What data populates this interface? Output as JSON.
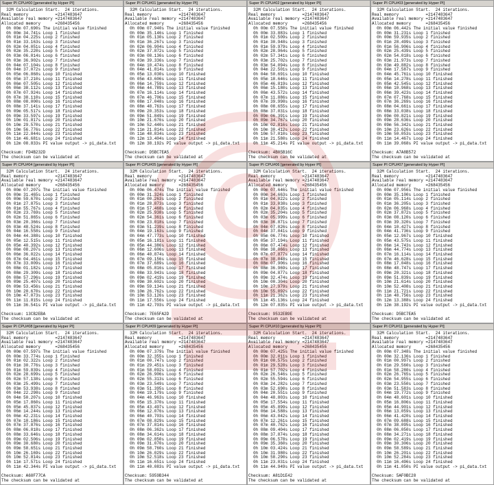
{
  "common": {
    "header": [
      "  32M Calculation Start.  24 iterations.",
      "Real memory           =2147483647",
      "Available real memory =2147483647",
      "Allocated memory      =268435456"
    ],
    "checksum_label": "Checksum: ",
    "validate_text": "The checksum can be validated at",
    "watermark_color": "#d01010"
  },
  "windows": [
    {
      "title": "Super PI CPU#00 [generated by Hyper PI]",
      "checksum": "FD4B232D",
      "lines": [
        "  0h 00m 07.690s The initial value finished",
        "  0h 00m 34.741s Loop 1 finished",
        "  0h 01m 04.225s Loop 2 finished",
        "  0h 01m 33.163s Loop 3 finished",
        "  0h 02m 04.051s Loop 4 finished",
        "  0h 02m 35.220s Loop 5 finished",
        "  0h 03m 06.014s Loop 6 finished",
        "  0h 03m 36.902s Loop 7 finished",
        "  0h 04m 07.104s Loop 8 finished",
        "  0h 04m 37.072s Loop 9 finished",
        "  0h 05m 06.868s Loop 10 finished",
        "  0h 05m 37.210s Loop 11 finished",
        "  0h 06m 07.505s Loop 12 finished",
        "  0h 06m 38.112s Loop 13 finished",
        "  0h 07m 07.924s Loop 14 finished",
        "  0h 07m 38.110s Loop 15 finished",
        "  0h 08m 08.000s Loop 16 finished",
        "  0h 08m 37.141s Loop 17 finished",
        "  0h 09m 05.517s Loop 18 finished",
        "  0h 09m 33.597s Loop 19 finished",
        "  0h 10m 01.817s Loop 20 finished",
        "  0h 10m 29.570s Loop 21 finished",
        "  0h 10m 56.776s Loop 22 finished",
        "  0h 11m 22.844s Loop 23 finished",
        "  0h 11m 46.681s Loop 24 finished",
        "  0h 12m 08.833s PI value output -> pi_data.txt"
      ]
    },
    {
      "title": "Super PI CPU#01 [generated by Hyper PI]",
      "checksum": "D5BC7EA5",
      "lines": [
        "  0h 00m 07.940s The initial value finished",
        "  0h 00m 35.146s Loop 1 finished",
        "  0h 01m 05.130s Loop 2 finished",
        "  0h 01m 36.267s Loop 3 finished",
        "  0h 02m 06.904s Loop 4 finished",
        "  0h 02m 37.872s Loop 5 finished",
        "  0h 03m 08.136s Loop 6 finished",
        "  0h 03m 39.336s Loop 7 finished",
        "  0h 04m 10.474s Loop 8 finished",
        "  0h 04m 41.814s Loop 9 finished",
        "  0h 05m 13.030s Loop 10 finished",
        "  0h 05m 43.606s Loop 11 finished",
        "  0h 06m 14.759s Loop 12 finished",
        "  0h 06m 44.789s Loop 13 finished",
        "  0h 07m 16.114s Loop 14 finished",
        "  0h 07m 46.706s Loop 15 finished",
        "  0h 08m 17.048s Loop 16 finished",
        "  0h 08m 48.763s Loop 17 finished",
        "  0h 09m 20.353s Loop 18 finished",
        "  0h 09m 51.849s Loop 19 finished",
        "  0h 10m 21.676s Loop 20 finished",
        "  0h 10m 52.440s Loop 21 finished",
        "  0h 11m 21.814s Loop 22 finished",
        "  0h 11m 48.834s Loop 23 finished",
        "  0h 12m 13.404s Loop 24 finished",
        "  0h 12m 38.192s PI value output -> pi_data.txt"
      ]
    },
    {
      "title": "Super PI CPU#02 [generated by Hyper PI]",
      "checksum": "4B05B16C",
      "lines": [
        "  0h 00m 07.550s The initial value finished",
        "  0h 00m 33.883s Loop 1 finished",
        "  0h 01m 02.509s Loop 2 finished",
        "  0h 01m 30.948s Loop 3 finished",
        "  0h 01m 59.979s Loop 4 finished",
        "  0h 02m 28.964s Loop 5 finished",
        "  0h 02m 57.341s Loop 6 finished",
        "  0h 03m 25.702s Loop 7 finished",
        "  0h 03m 54.094s Loop 8 finished",
        "  0h 04m 22.501s Loop 9 finished",
        "  0h 04m 50.691s Loop 10 finished",
        "  0h 05m 18.646s Loop 11 finished",
        "  0h 05m 46.819s Loop 12 finished",
        "  0h 06m 15.180s Loop 13 finished",
        "  0h 06m 43.572s Loop 14 finished",
        "  0h 07m 11.886s Loop 15 finished",
        "  0h 07m 39.998s Loop 16 finished",
        "  0h 08m 08.655s Loop 17 finished",
        "  0h 08m 37.031s Loop 18 finished",
        "  0h 09m 06.391s Loop 19 finished",
        "  0h 09m 34.767s Loop 20 finished",
        "  0h 10m 02.816s Loop 21 finished",
        "  0h 10m 30.412s Loop 22 finished",
        "  0h 10m 57.010s Loop 23 finished",
        "  0h 11m 21.580s Loop 24 finished",
        "  0h 11m 45.214s PI value output -> pi_data.txt"
      ]
    },
    {
      "title": "Super PI CPU#03 [generated by Hyper PI]",
      "checksum": "A7A8B572",
      "lines": [
        "  0h 00m 06.442s The initial value finished",
        "  0h 00m 31.231s Loop 1 finished",
        "  0h 00m 59.935s Loop 2 finished",
        "  0h 01m 28.499s Loop 3 finished",
        "  0h 01m 56.906s Loop 4 finished",
        "  0h 02m 25.439s Loop 5 finished",
        "  0h 02m 54.018s Loop 6 finished",
        "  0h 03m 21.973s Loop 7 finished",
        "  0h 03m 49.882s Loop 8 finished",
        "  0h 04m 17.587s Loop 9 finished",
        "  0h 04m 45.761s Loop 10 finished",
        "  0h 05m 14.278s Loop 11 finished",
        "  0h 05m 42.545s Loop 12 finished",
        "  0h 06m 10.968s Loop 13 finished",
        "  0h 06m 39.423s Loop 14 finished",
        "  0h 07m 07.768s Loop 15 finished",
        "  0h 07m 36.269s Loop 16 finished",
        "  0h 08m 04.661s Loop 17 finished",
        "  0h 08m 33.038s Loop 18 finished",
        "  0h 09m 00.821s Loop 19 finished",
        "  0h 09m 28.636s Loop 20 finished",
        "  0h 09m 56.342s Loop 21 finished",
        "  0h 10m 23.626s Loop 22 finished",
        "  0h 10m 50.053s Loop 23 finished",
        "  0h 11m 14.467s Loop 24 finished",
        "  0h 11m 39.068s PI value output -> pi_data.txt"
      ]
    },
    {
      "title": "Super PI CPU#04 [generated by Hyper PI]",
      "checksum": "13CB2EBA",
      "lines": [
        "  0h 00m 07.207s The initial value finished",
        "  0h 00m 31.465s Loop 1 finished",
        "  0h 00m 59.670s Loop 2 finished",
        "  0h 01m 27.875s Loop 3 finished",
        "  0h 01m 55.767s Loop 4 finished",
        "  0h 02m 23.769s Loop 5 finished",
        "  0h 02m 51.865s Loop 6 finished",
        "  0h 03m 20.366s Loop 7 finished",
        "  0h 03m 48.524s Loop 8 finished",
        "  0h 04m 16.558s Loop 9 finished",
        "  0h 04m 44.388s Loop 10 finished",
        "  0h 05m 12.515s Loop 11 finished",
        "  0h 05m 40.392s Loop 12 finished",
        "  0h 06m 08.207s Loop 13 finished",
        "  0h 06m 36.022s Loop 14 finished",
        "  0h 07m 04.461s Loop 15 finished",
        "  0h 07m 33.009s Loop 16 finished",
        "  0h 08m 01.182s Loop 17 finished",
        "  0h 08m 29.309s Loop 18 finished",
        "  0h 08m 57.296s Loop 19 finished",
        "  0h 09m 25.407s Loop 20 finished",
        "  0h 09m 53.456s Loop 21 finished",
        "  0h 10m 20.670s Loop 22 finished",
        "  0h 10m 47.073s Loop 23 finished",
        "  0h 11m 11.815s Loop 24 finished",
        "  0h 11m 36.541s PI value output -> pi_data.txt"
      ]
    },
    {
      "title": "Super PI CPU#05 [generated by Hyper PI]",
      "checksum": "7E65FA2D",
      "lines": [
        "  0h 00m 06.474s The initial value finished",
        "  0h 00m 31.324s Loop 1 finished",
        "  0h 01m 00.263s Loop 2 finished",
        "  0h 01m 28.873s Loop 3 finished",
        "  0h 01m 57.468s Loop 4 finished",
        "  0h 02m 25.938s Loop 5 finished",
        "  0h 02m 54.361s Loop 6 finished",
        "  0h 03m 23.018s Loop 7 finished",
        "  0h 03m 51.239s Loop 8 finished",
        "  0h 04m 19.163s Loop 9 finished",
        "  0h 04m 47.773s Loop 10 finished",
        "  0h 05m 16.181s Loop 11 finished",
        "  0h 05m 44.386s Loop 12 finished",
        "  0h 06m 12.606s Loop 13 finished",
        "  0h 06m 40.874s Loop 14 finished",
        "  0h 07m 09.156s Loop 15 finished",
        "  0h 07m 37.689s Loop 16 finished",
        "  0h 08m 05.816s Loop 17 finished",
        "  0h 08m 33.943s Loop 18 finished",
        "  0h 09m 02.419s Loop 19 finished",
        "  0h 09m 30.602s Loop 20 finished",
        "  0h 09m 59.134s Loop 21 finished",
        "  0h 10m 26.762s Loop 22 finished",
        "  0h 10m 53.126s Loop 23 finished",
        "  0h 11m 17.556s Loop 24 finished",
        "  0h 11m 42.703s PI value output -> pi_data.txt"
      ]
    },
    {
      "title": "Super PI CPU#06 [generated by Hyper PI]",
      "checksum": "9532EB9E",
      "lines": [
        "  0h 00m 07.646s The initial value finished",
        "  0h 00m 34.663s Loop 1 finished",
        "  0h 01m 04.022s Loop 2 finished",
        "  0h 01m 33.038s Loop 3 finished",
        "  0h 02m 04.035s Loop 4 finished",
        "  0h 02m 35.204s Loop 5 finished",
        "  0h 03m 05.999s Loop 6 finished",
        "  0h 03m 36.871s Loop 7 finished",
        "  0h 04m 07.026s Loop 8 finished",
        "  0h 04m 37.041s Loop 9 finished",
        "  0h 05m 06.774s Loop 10 finished",
        "  0h 05m 37.194s Loop 11 finished",
        "  0h 06m 07.474s Loop 12 finished",
        "  0h 06m 38.066s Loop 13 finished",
        "  0h 07m 07.877s Loop 14 finished",
        "  0h 07m 38.048s Loop 15 finished",
        "  0h 08m 07.906s Loop 16 finished",
        "  0h 08m 36.969s Loop 17 finished",
        "  0h 09m 04.877s Loop 18 finished",
        "  0h 09m 32.474s Loop 19 finished",
        "  0h 10m 00.304s Loop 20 finished",
        "  0h 10m 27.979s Loop 21 finished",
        "  0h 10m 55.092s Loop 22 finished",
        "  0h 11m 21.362s Loop 23 finished",
        "  0h 11m 45.136s Loop 24 finished",
        "  0h 12m 07.835s PI value output -> pi_data.txt"
      ]
    },
    {
      "title": "Super PI CPU#07 [generated by Hyper PI]",
      "checksum": "D5BC7EA5",
      "lines": [
        "  0h 00m 07.956s The initial value finished",
        "  0h 00m 35.100s Loop 1 finished",
        "  0h 01m 05.114s Loop 2 finished",
        "  0h 01m 36.205s Loop 3 finished",
        "  0h 02m 06.968s Loop 4 finished",
        "  0h 02m 37.872s Loop 5 finished",
        "  0h 03m 08.120s Loop 6 finished",
        "  0h 03m 39.320s Loop 7 finished",
        "  0h 04m 10.427s Loop 8 finished",
        "  0h 04m 41.736s Loop 9 finished",
        "  0h 05m 12.967s Loop 10 finished",
        "  0h 05m 43.575s Loop 11 finished",
        "  0h 06m 14.743s Loop 12 finished",
        "  0h 06m 44.774s Loop 13 finished",
        "  0h 07m 16.114s Loop 14 finished",
        "  0h 07m 46.628s Loop 15 finished",
        "  0h 08m 17.048s Loop 16 finished",
        "  0h 08m 48.747s Loop 17 finished",
        "  0h 09m 20.321s Loop 18 finished",
        "  0h 09m 51.839s Loop 19 finished",
        "  0h 10m 21.614s Loop 20 finished",
        "  0h 10m 52.408s Loop 21 finished",
        "  0h 11m 21.721s Loop 22 finished",
        "  0h 11m 48.756s Loop 23 finished",
        "  0h 12m 13.388s Loop 24 finished",
        "  0h 12m 38.192s PI value output -> pi_data.txt"
      ]
    },
    {
      "title": "Super PI CPU#08 [generated by Hyper PI]",
      "checksum": "A68F77CA",
      "lines": [
        "  0h 00m 07.597s The initial value finished",
        "  0h 00m 33.774s Loop 1 finished",
        "  0h 01m 02.322s Loop 2 finished",
        "  0h 01m 30.776s Loop 3 finished",
        "  0h 01m 59.839s Loop 4 finished",
        "  0h 02m 28.699s Loop 5 finished",
        "  0h 02m 57.138s Loop 6 finished",
        "  0h 03m 25.499s Loop 7 finished",
        "  0h 03m 53.938s Loop 8 finished",
        "  0h 04m 22.298s Loop 9 finished",
        "  0h 04m 50.207s Loop 10 finished",
        "  0h 05m 17.860s Loop 11 finished",
        "  0h 05m 45.837s Loop 12 finished",
        "  0h 06m 14.244s Loop 13 finished",
        "  0h 06m 42.231s Loop 14 finished",
        "  0h 07m 10.186s Loop 15 finished",
        "  0h 07m 37.876s Loop 16 finished",
        "  0h 08m 06.018s Loop 17 finished",
        "  0h 08m 33.646s Loop 18 finished",
        "  0h 09m 02.506s Loop 19 finished",
        "  0h 09m 30.680s Loop 20 finished",
        "  0h 09m 58.651s Loop 21 finished",
        "  0h 10m 26.169s Loop 22 finished",
        "  0h 10m 52.814s Loop 23 finished",
        "  0h 11m 17.571s Loop 24 finished",
        "  0h 11m 42.344s PI value output -> pi_data.txt"
      ]
    },
    {
      "title": "Super PI CPU#09 [generated by Hyper PI]",
      "checksum": "5959B344",
      "lines": [
        "  0h 00m 07.379s The initial value finished",
        "  0h 00m 32.355s Loop 1 finished",
        "  0h 01m 00.747s Loop 2 finished",
        "  0h 01m 29.451s Loop 3 finished",
        "  0h 01m 58.092s Loop 4 finished",
        "  0h 02m 26.906s Loop 5 finished",
        "  0h 02m 55.313s Loop 6 finished",
        "  0h 03m 23.549s Loop 7 finished",
        "  0h 03m 51.395s Loop 8 finished",
        "  0h 04m 19.179s Loop 9 finished",
        "  0h 04m 46.963s Loop 10 finished",
        "  0h 05m 15.370s Loop 11 finished",
        "  0h 05m 43.497s Loop 12 finished",
        "  0h 06m 12.076s Loop 13 finished",
        "  0h 06m 40.703s Loop 14 finished",
        "  0h 07m 08.829s Loop 15 finished",
        "  0h 07m 37.814s Loop 16 finished",
        "  0h 08m 06.362s Loop 17 finished",
        "  0h 08m 34.614s Loop 18 finished",
        "  0h 09m 02.850s Loop 19 finished",
        "  0h 09m 31.070s Loop 20 finished",
        "  0h 09m 58.760s Loop 21 finished",
        "  0h 10m 26.029s Loop 22 finished",
        "  0h 10m 52.518s Loop 23 finished",
        "  0h 11m 16.651s Loop 24 finished",
        "  0h 11m 40.083s PI value output -> pi_data.txt"
      ]
    },
    {
      "title": "Super PI CPU#10 [generated by Hyper PI]",
      "checksum": "A81D1E42",
      "lines": [
        "  0h 00m 07.425s The initial value finished",
        "  0h 00m 32.011s Loop 1 finished",
        "  0h 01m 00.575s Loop 2 finished",
        "  0h 01m 29.528s Loop 3 finished",
        "  0h 01m 57.702s Loop 4 finished",
        "  0h 02m 26.546s Loop 5 finished",
        "  0h 02m 55.594s Loop 6 finished",
        "  0h 03m 24.282s Loop 7 finished",
        "  0h 03m 52.690s Loop 8 finished",
        "  0h 04m 20.551s Loop 9 finished",
        "  0h 04m 48.803s Loop 10 finished",
        "  0h 05m 17.554s Loop 11 finished",
        "  0h 05m 45.899s Loop 12 finished",
        "  0h 06m 14.588s Loop 13 finished",
        "  0h 06m 43.042s Loop 14 finished",
        "  0h 07m 12.261s Loop 15 finished",
        "  0h 07m 40.762s Loop 16 finished",
        "  0h 08m 09.404s Loop 17 finished",
        "  0h 08m 37.874s Loop 18 finished",
        "  0h 09m 06.578s Loop 19 finished",
        "  0h 09m 35.360s Loop 20 finished",
        "  0h 10m 03.424s Loop 21 finished",
        "  0h 10m 31.980s Loop 22 finished",
        "  0h 10m 58.290s Loop 23 finished",
        "  0h 11m 23.031s Loop 24 finished",
        "  0h 11m 44.949s PI value output -> pi_data.txt"
      ]
    },
    {
      "title": "Super PI CPU#11 [generated by Hyper PI]",
      "checksum": "5AF0BC28",
      "lines": [
        "  0h 00m 07.348s The initial value finished",
        "  0h 00m 32.136s Loop 1 finished",
        "  0h 01m 00.997s Loop 2 finished",
        "  0h 01m 29.560s Loop 3 finished",
        "  0h 01m 58.280s Loop 4 finished",
        "  0h 02m 26.765s Loop 5 finished",
        "  0h 02m 54.955s Loop 6 finished",
        "  0h 03m 23.550s Loop 7 finished",
        "  0h 03m 51.583s Loop 8 finished",
        "  0h 04m 19.772s Loop 9 finished",
        "  0h 04m 48.601s Loop 10 finished",
        "  0h 05m 16.806s Loop 11 finished",
        "  0h 05m 44.901s Loop 12 finished",
        "  0h 06m 13.059s Loop 13 finished",
        "  0h 06m 41.420s Loop 14 finished",
        "  0h 07m 09.688s Loop 15 finished",
        "  0h 07m 38.095s Loop 16 finished",
        "  0h 08m 06.050s Loop 17 finished",
        "  0h 08m 34.271s Loop 18 finished",
        "  0h 09m 02.419s Loop 19 finished",
        "  0h 09m 30.306s Loop 20 finished",
        "  0h 09m 58.589s Loop 21 finished",
        "  0h 10m 26.201s Loop 22 finished",
        "  0h 10m 52.284s Loop 23 finished",
        "  0h 11m 16.496s Loop 24 finished",
        "  0h 11m 41.050s PI value output -> pi_data.txt"
      ]
    }
  ]
}
